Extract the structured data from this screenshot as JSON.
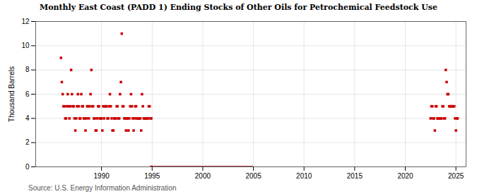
{
  "chart_data": {
    "type": "scatter",
    "title": "Monthly East Coast (PADD 1) Ending Stocks of Other Oils for Petrochemical Feedstock Use",
    "y_label": "Thousand Barrels",
    "source": "Source: U.S. Energy Information Administration",
    "xlim": [
      1983.5,
      2026.0
    ],
    "ylim": [
      0,
      12
    ],
    "xticks": [
      1990,
      1995,
      2000,
      2005,
      2010,
      2015,
      2020,
      2025
    ],
    "yticks": [
      0,
      2,
      4,
      6,
      8,
      10,
      12
    ],
    "grid": true,
    "series": [
      {
        "type": "scatter",
        "color": "#cc0000",
        "marker": "square",
        "x": [
          1986.0,
          1986.083,
          1986.167,
          1986.25,
          1986.333,
          1986.417,
          1986.5,
          1986.583,
          1986.667,
          1986.75,
          1986.833,
          1986.917,
          1987.0,
          1987.083,
          1987.167,
          1987.25,
          1987.333,
          1987.417,
          1987.5,
          1987.583,
          1987.667,
          1987.75,
          1987.833,
          1987.917,
          1988.0,
          1988.083,
          1988.167,
          1988.25,
          1988.333,
          1988.417,
          1988.5,
          1988.583,
          1988.667,
          1988.75,
          1988.833,
          1988.917,
          1989.0,
          1989.083,
          1989.167,
          1989.25,
          1989.333,
          1989.417,
          1989.5,
          1989.583,
          1989.667,
          1989.75,
          1989.833,
          1989.917,
          1990.0,
          1990.083,
          1990.167,
          1990.25,
          1990.333,
          1990.417,
          1990.5,
          1990.583,
          1990.667,
          1990.75,
          1990.833,
          1990.917,
          1991.0,
          1991.083,
          1991.167,
          1991.25,
          1991.333,
          1991.417,
          1991.5,
          1991.583,
          1991.667,
          1991.75,
          1991.833,
          1991.917,
          1992.0,
          1992.083,
          1992.167,
          1992.25,
          1992.333,
          1992.417,
          1992.5,
          1992.583,
          1992.667,
          1992.75,
          1992.833,
          1992.917,
          1993.0,
          1993.083,
          1993.167,
          1993.25,
          1993.333,
          1993.417,
          1993.5,
          1993.583,
          1993.667,
          1993.75,
          1993.833,
          1993.917,
          1994.0,
          1994.083,
          1994.167,
          1994.25,
          1994.333,
          1994.417,
          1994.5,
          1994.583,
          1994.667,
          1994.75,
          1994.833,
          1994.917,
          1994.917,
          2022.5,
          2022.583,
          2022.667,
          2022.75,
          2022.833,
          2022.917,
          2023.0,
          2023.083,
          2023.167,
          2023.25,
          2023.333,
          2023.417,
          2023.5,
          2023.583,
          2023.667,
          2023.75,
          2023.833,
          2023.917,
          2024.0,
          2024.083,
          2024.167,
          2024.25,
          2024.333,
          2024.417,
          2024.5,
          2024.583,
          2024.667,
          2024.75,
          2024.833,
          2024.917,
          2025.0,
          2025.083,
          2025.167
        ],
        "values": [
          9,
          7,
          6,
          5,
          5,
          4,
          4,
          5,
          6,
          5,
          4,
          5,
          8,
          6,
          5,
          5,
          4,
          3,
          4,
          5,
          6,
          5,
          4,
          4,
          6,
          5,
          5,
          4,
          4,
          3,
          4,
          5,
          5,
          4,
          5,
          6,
          8,
          5,
          5,
          4,
          4,
          3,
          3,
          4,
          5,
          5,
          4,
          4,
          4,
          3,
          5,
          4,
          5,
          5,
          5,
          4,
          4,
          5,
          6,
          5,
          4,
          3,
          3,
          4,
          4,
          4,
          5,
          5,
          4,
          4,
          6,
          7,
          11,
          5,
          5,
          4,
          4,
          3,
          4,
          4,
          3,
          4,
          5,
          6,
          5,
          4,
          3,
          4,
          5,
          5,
          4,
          4,
          4,
          4,
          4,
          3,
          6,
          5,
          4,
          4,
          4,
          4,
          4,
          4,
          5,
          5,
          4,
          4,
          0,
          4,
          5,
          5,
          4,
          4,
          3,
          5,
          5,
          4,
          4,
          4,
          4,
          4,
          4,
          5,
          5,
          4,
          4,
          8,
          7,
          6,
          6,
          5,
          5,
          5,
          5,
          5,
          5,
          5,
          4,
          3,
          4,
          4
        ]
      },
      {
        "type": "line",
        "color": "#8b0000",
        "x": [
          1994.917,
          2004.917
        ],
        "values": [
          0,
          0
        ]
      }
    ]
  }
}
